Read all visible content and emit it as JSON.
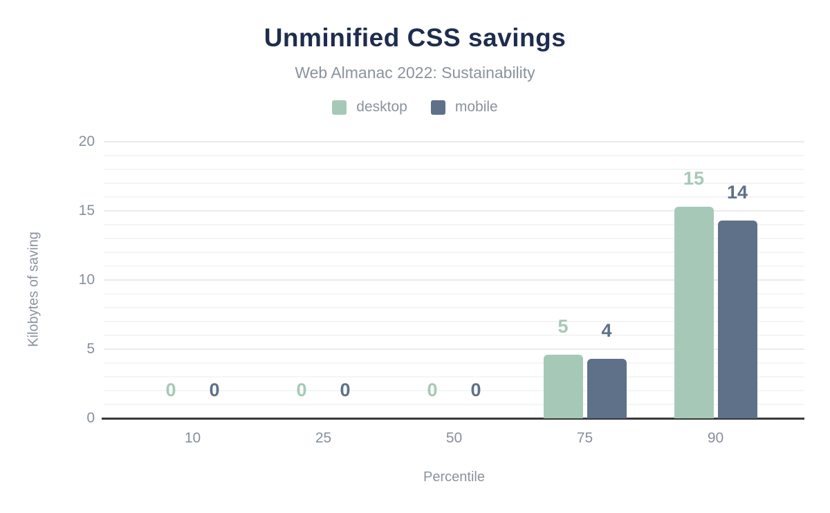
{
  "title": "Unminified CSS savings",
  "subtitle": "Web Almanac 2022: Sustainability",
  "legend": [
    {
      "label": "desktop",
      "color": "#a6c9b7"
    },
    {
      "label": "mobile",
      "color": "#5e7189"
    }
  ],
  "colors": {
    "title": "#1e2d4d",
    "axis_text": "#8b929e",
    "tick_text": "#878f9b",
    "grid_minor": "#f5f5f5",
    "grid_major": "#ebebeb",
    "baseline": "#383838",
    "background": "#ffffff"
  },
  "chart_data": {
    "type": "bar",
    "categories": [
      "10",
      "25",
      "50",
      "75",
      "90"
    ],
    "series": [
      {
        "name": "desktop",
        "color": "#a6c9b7",
        "values": [
          0,
          0,
          0,
          4.6,
          15.3
        ],
        "labels": [
          "0",
          "0",
          "0",
          "5",
          "15"
        ]
      },
      {
        "name": "mobile",
        "color": "#5e7189",
        "values": [
          0,
          0,
          0,
          4.3,
          14.3
        ],
        "labels": [
          "0",
          "0",
          "0",
          "4",
          "14"
        ]
      }
    ],
    "title": "Unminified CSS savings",
    "subtitle": "Web Almanac 2022: Sustainability",
    "xlabel": "Percentile",
    "ylabel": "Kilobytes of saving",
    "ylim": [
      0,
      20
    ],
    "yticks": [
      0,
      5,
      10,
      15,
      20
    ],
    "ytick_labels": [
      "0",
      "5",
      "10",
      "15",
      "20"
    ],
    "grid": "horizontal, minor every 1 unit, major every 5 units",
    "legend_position": "top center",
    "bar_label_position": "above bars, colored per series"
  }
}
